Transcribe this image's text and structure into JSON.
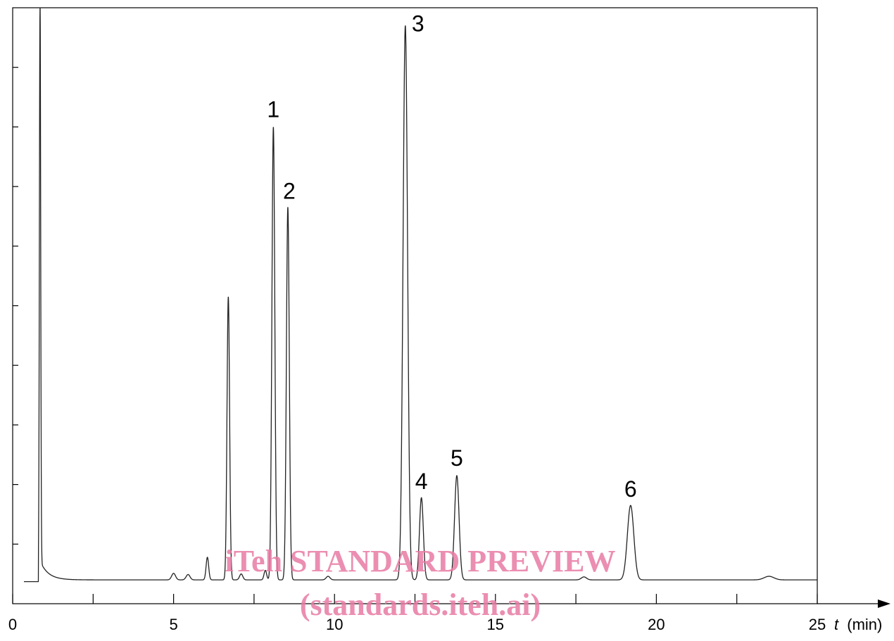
{
  "chart_data": {
    "type": "line",
    "title": "",
    "xlabel": "t (min)",
    "xlabel_symbol": "t",
    "xlabel_unit": "(min)",
    "ylabel": "",
    "xlim": [
      0,
      25
    ],
    "ylim": [
      0,
      100
    ],
    "x_ticks": [
      0,
      5,
      10,
      15,
      20,
      25
    ],
    "x_tick_labels": [
      "0",
      "5",
      "10",
      "15",
      "20",
      "25"
    ],
    "x_minor_ticks": [
      2.5,
      7.5,
      12.5,
      17.5,
      22.5
    ],
    "y_ticks": [
      10,
      20,
      30,
      40,
      50,
      60,
      70,
      80,
      90
    ],
    "y_tick_labels": [],
    "grid": false,
    "baseline": 4,
    "peaks": [
      {
        "label": "",
        "t": 0.85,
        "height": 100,
        "width": 0.02
      },
      {
        "label": "",
        "t": 5.0,
        "height": 5.1,
        "width": 0.06
      },
      {
        "label": "",
        "t": 5.45,
        "height": 4.9,
        "width": 0.06
      },
      {
        "label": "",
        "t": 6.05,
        "height": 7.8,
        "width": 0.04
      },
      {
        "label": "",
        "t": 6.7,
        "height": 51.5,
        "width": 0.04
      },
      {
        "label": "",
        "t": 7.1,
        "height": 5.0,
        "width": 0.05
      },
      {
        "label": "",
        "t": 7.85,
        "height": 5.6,
        "width": 0.04
      },
      {
        "label": "1",
        "t": 8.1,
        "height": 80,
        "width": 0.045
      },
      {
        "label": "2",
        "t": 8.55,
        "height": 66.5,
        "width": 0.045
      },
      {
        "label": "",
        "t": 9.8,
        "height": 4.6,
        "width": 0.06
      },
      {
        "label": "3",
        "t": 12.2,
        "height": 97,
        "width": 0.07
      },
      {
        "label": "4",
        "t": 12.7,
        "height": 17.8,
        "width": 0.06
      },
      {
        "label": "5",
        "t": 13.8,
        "height": 21.5,
        "width": 0.07
      },
      {
        "label": "",
        "t": 17.75,
        "height": 4.5,
        "width": 0.08
      },
      {
        "label": "6",
        "t": 19.2,
        "height": 16.5,
        "width": 0.1
      },
      {
        "label": "",
        "t": 23.5,
        "height": 4.6,
        "width": 0.15
      }
    ]
  },
  "watermark": {
    "line1": "iTeh STANDARD PREVIEW",
    "line2": "(standards.iteh.ai)"
  }
}
